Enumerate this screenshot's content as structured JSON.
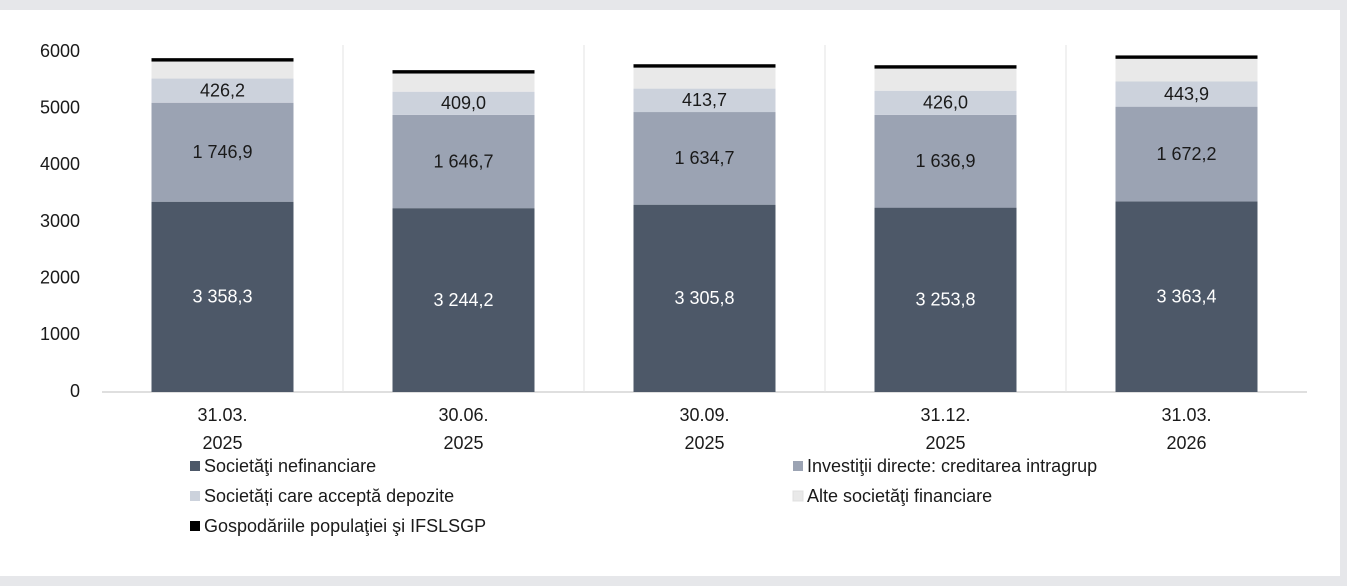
{
  "chart_data": {
    "type": "stacked_bar",
    "categories": [
      "31.03.\n2025",
      "30.06.\n2025",
      "30.09.\n2025",
      "31.12.\n2025",
      "31.03.\n2026"
    ],
    "ylim": [
      0,
      6000
    ],
    "yticks": [
      0,
      1000,
      2000,
      3000,
      4000,
      5000,
      6000
    ],
    "series": [
      {
        "name": "Societăţi nefinanciare",
        "color": "#4d5868",
        "label_color": "#ffffff",
        "values": [
          3358.3,
          3244.2,
          3305.8,
          3253.8,
          3363.4
        ],
        "value_labels": [
          "3 358,3",
          "3 244,2",
          "3 305,8",
          "3 253,8",
          "3 363,4"
        ]
      },
      {
        "name": "Investiţii directe: creditarea intragrup",
        "color": "#9ba3b3",
        "label_color": "#1a1a1a",
        "values": [
          1746.9,
          1646.7,
          1634.7,
          1636.9,
          1672.2
        ],
        "value_labels": [
          "1 746,9",
          "1 646,7",
          "1 634,7",
          "1 636,9",
          "1 672,2"
        ]
      },
      {
        "name": "Societăți care acceptă depozite",
        "color": "#ccd2dc",
        "label_color": "#1a1a1a",
        "values": [
          426.2,
          409.0,
          413.7,
          426.0,
          443.9
        ],
        "value_labels": [
          "426,2",
          "409,0",
          "413,7",
          "426,0",
          "443,9"
        ]
      },
      {
        "name": "Alte societăţi financiare",
        "color": "#e9e9e9",
        "values": [
          300,
          320,
          370,
          390,
          400
        ]
      },
      {
        "name": "Gospodăriile populaţiei şi IFSLSGP",
        "color": "#000000",
        "values": [
          60,
          60,
          60,
          60,
          60
        ]
      }
    ]
  }
}
